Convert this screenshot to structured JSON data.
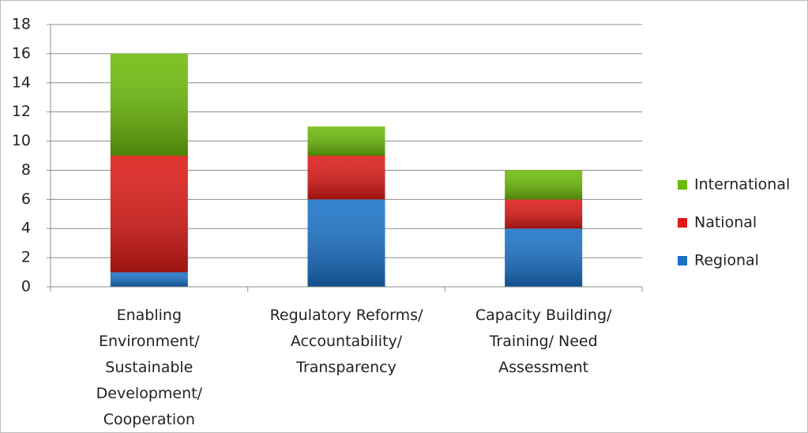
{
  "chart_data": {
    "type": "stacked_bar",
    "categories": [
      "Enabling Environment/ Sustainable Development/ Cooperation",
      "Regulatory Reforms/ Accountability/ Transparency",
      "Capacity Building/ Training/ Need Assessment"
    ],
    "series": [
      {
        "name": "Regional",
        "color": "#1a72c8",
        "values": [
          1,
          6,
          4
        ]
      },
      {
        "name": "National",
        "color": "#dd1a16",
        "values": [
          8,
          3,
          2
        ]
      },
      {
        "name": "International",
        "color": "#6cbb0a",
        "values": [
          7,
          2,
          2
        ]
      }
    ],
    "ylim": [
      0,
      18
    ],
    "yticks": [
      0,
      2,
      4,
      6,
      8,
      10,
      12,
      14,
      16,
      18
    ],
    "grid": true,
    "legend": "right"
  }
}
